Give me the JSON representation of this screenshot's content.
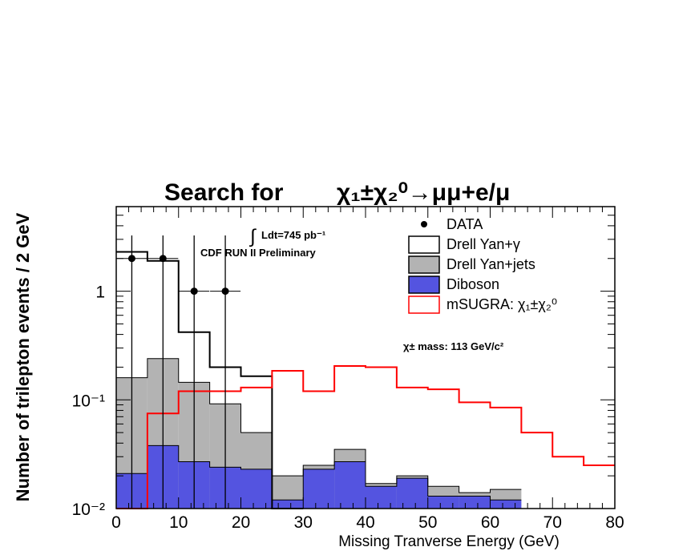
{
  "chart_data": {
    "type": "bar",
    "title_main": "Search for ",
    "title_process": "χ₁±χ₂⁰→μμ+e/μ",
    "xlabel": "Missing Tranverse Energy (GeV)",
    "ylabel": "Number of trilepton events / 2 GeV",
    "xlim": [
      0,
      80
    ],
    "ylim": [
      0.01,
      6
    ],
    "yscale": "log",
    "xticks": [
      "0",
      "10",
      "20",
      "30",
      "40",
      "50",
      "60",
      "70",
      "80"
    ],
    "yticks": [
      {
        "value": 0.01,
        "label": "10⁻²"
      },
      {
        "value": 0.1,
        "label": "10⁻¹"
      },
      {
        "value": 1,
        "label": "1"
      }
    ],
    "bin_edges": [
      0,
      5,
      10,
      15,
      20,
      25,
      30,
      35,
      40,
      45,
      50,
      55,
      60,
      65,
      70,
      75,
      80
    ],
    "series": [
      {
        "name": "Drell Yan+jets",
        "kind": "stack",
        "color": "#b3b3b3",
        "values": [
          0.16,
          0.24,
          0.145,
          0.092,
          0.05,
          0.02,
          0.025,
          0.035,
          0.017,
          0.02,
          0.016,
          0.014,
          0.015
        ]
      },
      {
        "name": "Diboson",
        "kind": "stack",
        "color": "#5454e0",
        "values": [
          0.021,
          0.038,
          0.027,
          0.024,
          0.023,
          0.012,
          0.023,
          0.027,
          0.016,
          0.019,
          0.013,
          0.013,
          0.012
        ]
      },
      {
        "name": "Drell Yan+γ",
        "kind": "step",
        "color": "#000000",
        "values": [
          2.3,
          1.9,
          0.42,
          0.2,
          0.165,
          0.01,
          null,
          null,
          null,
          null,
          null,
          null,
          null
        ]
      },
      {
        "name": "mSUGRA: χ₁±χ₂⁰",
        "kind": "step",
        "color": "#ff0000",
        "values": [
          0.01,
          0.075,
          0.12,
          0.12,
          0.13,
          0.185,
          0.12,
          0.205,
          0.2,
          0.13,
          0.125,
          0.095,
          0.085,
          0.05,
          0.03,
          0.025
        ]
      }
    ],
    "data_points": {
      "name": "DATA",
      "x": [
        2.5,
        7.5,
        12.5,
        17.5
      ],
      "y": [
        2.0,
        2.0,
        1.0,
        1.0
      ]
    },
    "legend": {
      "placement": "top-right",
      "entries": [
        {
          "label": "DATA",
          "style": "marker"
        },
        {
          "label": "Drell Yan+γ",
          "style": "box-black"
        },
        {
          "label": "Drell Yan+jets",
          "style": "box-gray"
        },
        {
          "label": "Diboson",
          "style": "box-blue"
        },
        {
          "label": "mSUGRA: χ₁±χ₂⁰",
          "style": "box-red"
        }
      ]
    },
    "annotations": {
      "lumi_int": "∫",
      "lumi": "Ldt=745 pb⁻¹",
      "run": "CDF RUN II Preliminary",
      "mass": "χ± mass: 113 GeV/c²"
    }
  }
}
